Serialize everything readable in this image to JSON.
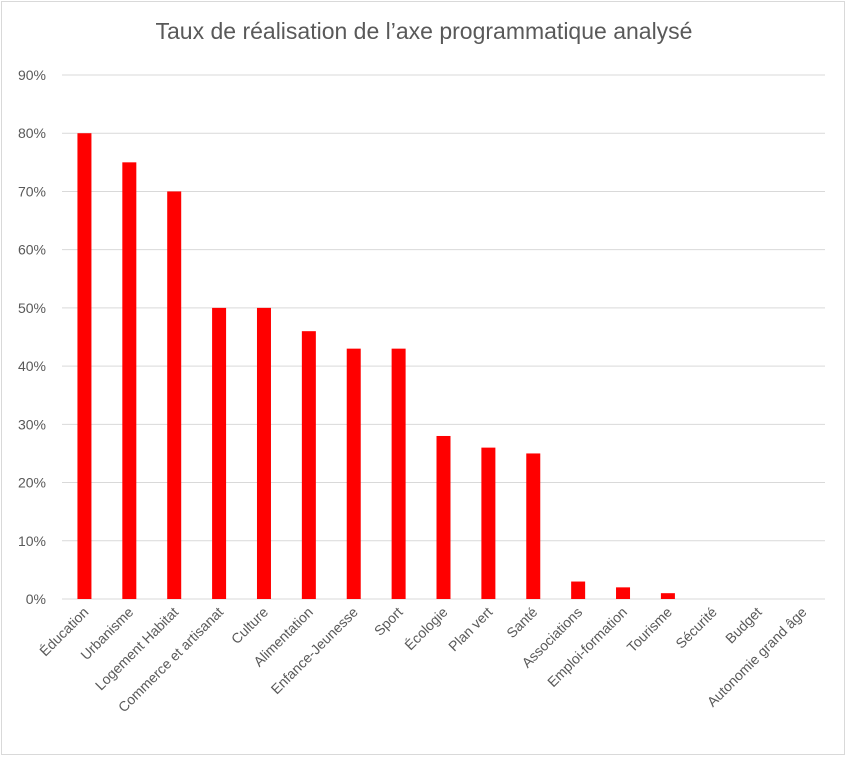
{
  "chart_data": {
    "type": "bar",
    "title": "Taux de réalisation de l’axe programmatique analysé",
    "xlabel": "",
    "ylabel": "",
    "categories": [
      "Éducation",
      "Urbanisme",
      "Logement Habitat",
      "Commerce et artisanat",
      "Culture",
      "Alimentation",
      "Enfance-Jeunesse",
      "Sport",
      "Écologie",
      "Plan vert",
      "Santé",
      "Associations",
      "Emploi-formation",
      "Tourisme",
      "Sécurité",
      "Budget",
      "Autonomie grand âge"
    ],
    "values": [
      80,
      75,
      70,
      50,
      50,
      46,
      43,
      43,
      28,
      26,
      25,
      3,
      2,
      1,
      0,
      0,
      0
    ],
    "ylim": [
      0,
      90
    ],
    "yticks": [
      "0%",
      "10%",
      "20%",
      "30%",
      "40%",
      "50%",
      "60%",
      "70%",
      "80%",
      "90%"
    ],
    "grid": true,
    "bar_color": "#ff0000"
  }
}
